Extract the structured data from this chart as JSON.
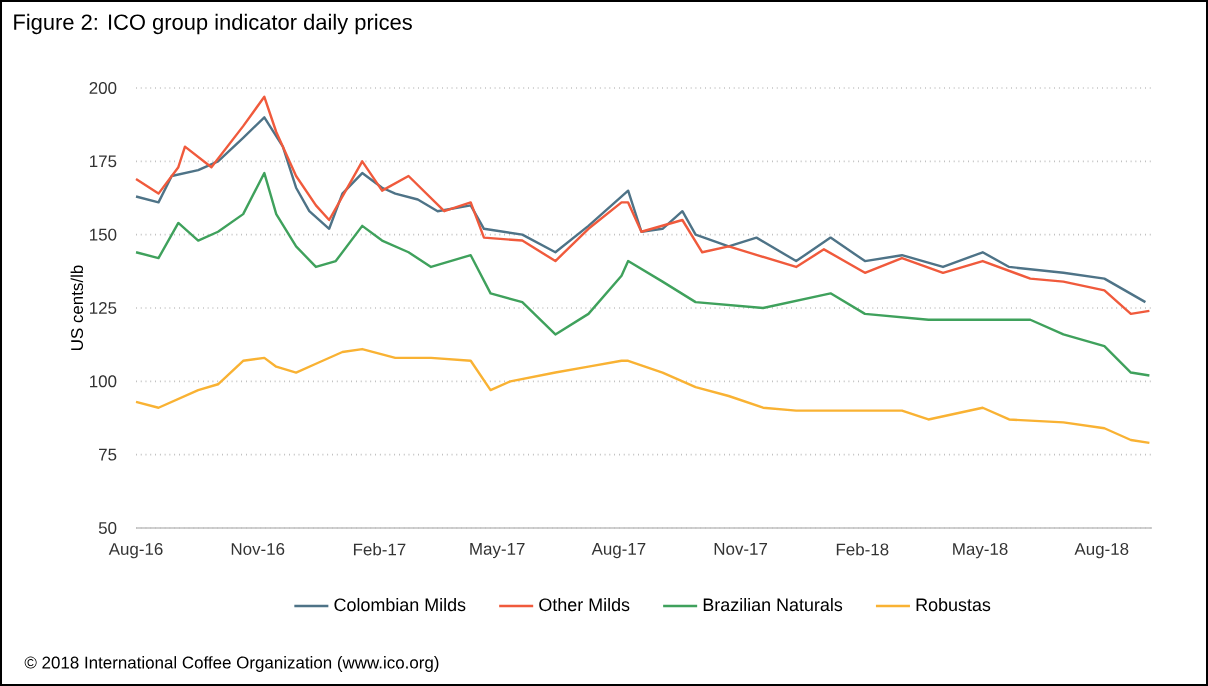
{
  "chart_data": {
    "type": "line",
    "title": "Figure 2: ICO group indicator daily prices",
    "ylabel": "US cents/lb",
    "annotations": [
      "© 2018 International Coffee Organization (www.ico.org)"
    ],
    "xlim": [
      "2016-08-01",
      "2018-09-08"
    ],
    "ylim": [
      50,
      200
    ],
    "yticks": [
      50,
      75,
      100,
      125,
      150,
      175,
      200
    ],
    "xticks": [
      {
        "value": "2016-08-01",
        "label": "Aug-16"
      },
      {
        "value": "2016-11-01",
        "label": "Nov-16"
      },
      {
        "value": "2017-02-01",
        "label": "Feb-17"
      },
      {
        "value": "2017-05-01",
        "label": "May-17"
      },
      {
        "value": "2017-08-01",
        "label": "Aug-17"
      },
      {
        "value": "2017-11-01",
        "label": "Nov-17"
      },
      {
        "value": "2018-02-01",
        "label": "Feb-18"
      },
      {
        "value": "2018-05-01",
        "label": "May-18"
      },
      {
        "value": "2018-08-01",
        "label": "Aug-18"
      }
    ],
    "grid": "y",
    "legend": "bottom",
    "series": [
      {
        "name": "Colombian Milds",
        "color": "#4e7387",
        "x": [
          "2016-08-01",
          "2016-08-18",
          "2016-08-28",
          "2016-09-17",
          "2016-10-02",
          "2016-10-21",
          "2016-11-06",
          "2016-11-20",
          "2016-11-30",
          "2016-12-10",
          "2016-12-25",
          "2017-01-04",
          "2017-01-19",
          "2017-02-03",
          "2017-02-13",
          "2017-03-02",
          "2017-03-17",
          "2017-04-11",
          "2017-04-21",
          "2017-05-20",
          "2017-06-14",
          "2017-07-09",
          "2017-08-08",
          "2017-08-18",
          "2017-09-03",
          "2017-09-18",
          "2017-09-28",
          "2017-10-23",
          "2017-11-13",
          "2017-12-13",
          "2018-01-08",
          "2018-02-03",
          "2018-03-03",
          "2018-04-03",
          "2018-05-03",
          "2018-05-23",
          "2018-07-03",
          "2018-08-03",
          "2018-09-03"
        ],
        "values": [
          163,
          161,
          170,
          172,
          175,
          183,
          190,
          180,
          166,
          158,
          152,
          164,
          171,
          166,
          164,
          162,
          158,
          160,
          152,
          150,
          144,
          153,
          165,
          151,
          152,
          158,
          150,
          146,
          149,
          141,
          149,
          141,
          143,
          139,
          144,
          139,
          137,
          135,
          127
        ]
      },
      {
        "name": "Other Milds",
        "color": "#f05a3c",
        "x": [
          "2016-08-01",
          "2016-08-18",
          "2016-09-02",
          "2016-09-07",
          "2016-09-27",
          "2016-10-21",
          "2016-11-06",
          "2016-11-15",
          "2016-11-30",
          "2016-12-15",
          "2016-12-25",
          "2017-01-09",
          "2017-01-19",
          "2017-02-03",
          "2017-02-23",
          "2017-03-22",
          "2017-04-11",
          "2017-04-21",
          "2017-05-20",
          "2017-06-14",
          "2017-07-09",
          "2017-08-03",
          "2017-08-08",
          "2017-08-18",
          "2017-09-18",
          "2017-10-03",
          "2017-10-23",
          "2017-12-13",
          "2018-01-03",
          "2018-02-03",
          "2018-03-03",
          "2018-04-03",
          "2018-05-03",
          "2018-06-08",
          "2018-07-03",
          "2018-08-03",
          "2018-08-23",
          "2018-09-06"
        ],
        "values": [
          169,
          164,
          173,
          180,
          173,
          187,
          197,
          185,
          170,
          160,
          155,
          167,
          175,
          165,
          170,
          158,
          161,
          149,
          148,
          141,
          152,
          161,
          161,
          151,
          155,
          144,
          146,
          139,
          145,
          137,
          142,
          137,
          141,
          135,
          134,
          131,
          123,
          124
        ]
      },
      {
        "name": "Brazilian Naturals",
        "color": "#3fa15c",
        "x": [
          "2016-08-01",
          "2016-08-18",
          "2016-09-02",
          "2016-09-17",
          "2016-10-02",
          "2016-10-21",
          "2016-11-06",
          "2016-11-15",
          "2016-11-30",
          "2016-12-15",
          "2016-12-30",
          "2017-01-19",
          "2017-02-03",
          "2017-02-23",
          "2017-03-12",
          "2017-04-11",
          "2017-04-26",
          "2017-05-20",
          "2017-06-14",
          "2017-07-09",
          "2017-08-03",
          "2017-08-08",
          "2017-09-03",
          "2017-09-28",
          "2017-11-18",
          "2018-01-08",
          "2018-02-03",
          "2018-03-23",
          "2018-05-03",
          "2018-06-08",
          "2018-07-03",
          "2018-08-03",
          "2018-08-23",
          "2018-09-06"
        ],
        "values": [
          144,
          142,
          154,
          148,
          151,
          157,
          171,
          157,
          146,
          139,
          141,
          153,
          148,
          144,
          139,
          143,
          130,
          127,
          116,
          123,
          136,
          141,
          134,
          127,
          125,
          130,
          123,
          121,
          121,
          121,
          116,
          112,
          103,
          102
        ]
      },
      {
        "name": "Robustas",
        "color": "#f9b233",
        "x": [
          "2016-08-01",
          "2016-08-18",
          "2016-09-17",
          "2016-10-02",
          "2016-10-21",
          "2016-11-06",
          "2016-11-15",
          "2016-11-30",
          "2016-12-15",
          "2017-01-04",
          "2017-01-19",
          "2017-02-13",
          "2017-03-12",
          "2017-04-11",
          "2017-04-26",
          "2017-05-11",
          "2017-06-14",
          "2017-07-09",
          "2017-08-03",
          "2017-08-08",
          "2017-09-03",
          "2017-09-28",
          "2017-10-23",
          "2017-11-18",
          "2017-12-13",
          "2018-02-03",
          "2018-03-03",
          "2018-03-23",
          "2018-05-03",
          "2018-05-23",
          "2018-07-03",
          "2018-08-03",
          "2018-08-23",
          "2018-09-06"
        ],
        "values": [
          93,
          91,
          97,
          99,
          107,
          108,
          105,
          103,
          106,
          110,
          111,
          108,
          108,
          107,
          97,
          100,
          103,
          105,
          107,
          107,
          103,
          98,
          95,
          91,
          90,
          90,
          90,
          87,
          91,
          87,
          86,
          84,
          80,
          79
        ]
      }
    ]
  }
}
